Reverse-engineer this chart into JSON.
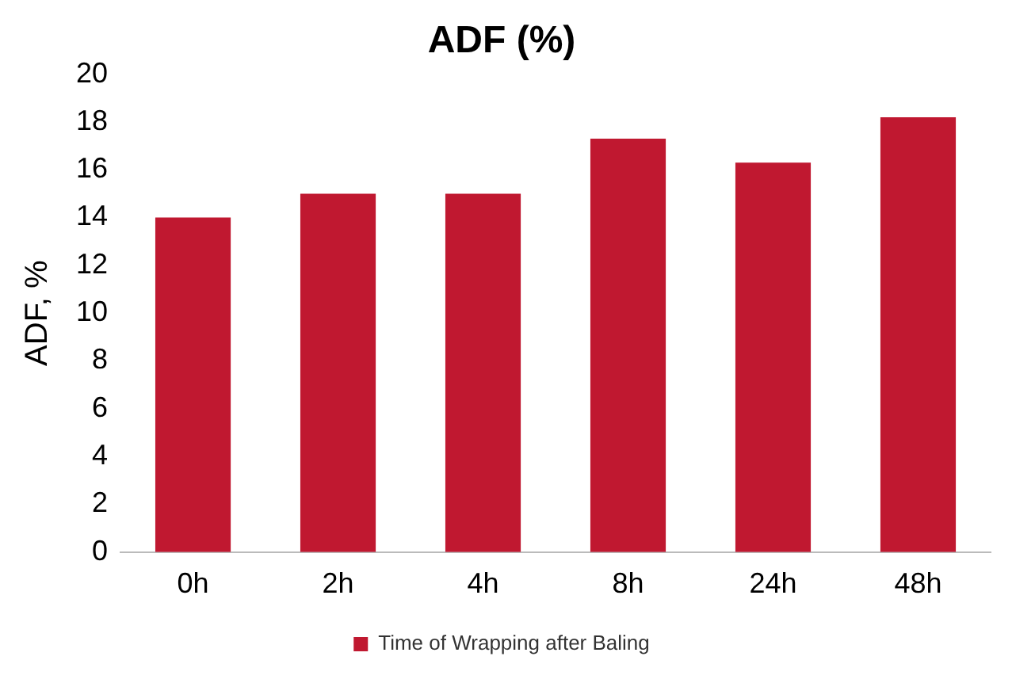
{
  "chart_data": {
    "type": "bar",
    "title": "ADF (%)",
    "ylabel": "ADF, %",
    "categories": [
      "0h",
      "2h",
      "4h",
      "8h",
      "24h",
      "48h"
    ],
    "series": [
      {
        "name": "Time of Wrapping after Baling",
        "color": "#c01830",
        "values": [
          14,
          15,
          15,
          17.3,
          16.3,
          18.2
        ]
      }
    ],
    "ylim": [
      0,
      20
    ],
    "yticks": [
      0,
      2,
      4,
      6,
      8,
      10,
      12,
      14,
      16,
      18,
      20
    ],
    "grid": false,
    "legend": "bottom"
  }
}
